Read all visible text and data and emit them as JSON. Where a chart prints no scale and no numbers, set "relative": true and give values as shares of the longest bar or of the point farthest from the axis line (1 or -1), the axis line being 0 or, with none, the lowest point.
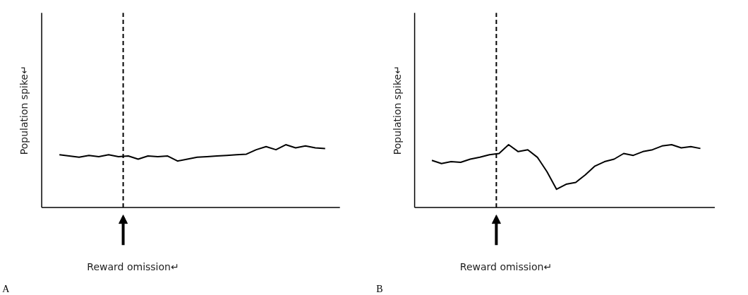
{
  "chart_data": [
    {
      "type": "line",
      "relative": true,
      "ylabel": "Population spike↵",
      "xlabel": "Reward omission↵",
      "annotations": [
        "A"
      ],
      "categories": [
        null,
        null,
        null,
        null,
        null,
        null,
        null,
        null,
        null,
        null,
        null,
        null,
        null,
        null,
        null,
        null,
        null,
        null,
        null,
        null,
        null,
        null,
        null,
        null,
        null,
        null,
        null,
        null
      ],
      "series": [
        {
          "color": "#000000",
          "values": [
            0.84,
            0.82,
            0.8,
            0.83,
            0.81,
            0.84,
            0.81,
            0.82,
            0.77,
            0.82,
            0.81,
            0.82,
            0.74,
            0.77,
            0.8,
            0.81,
            0.82,
            0.83,
            0.84,
            0.85,
            0.92,
            0.97,
            0.92,
            1,
            0.95,
            0.98,
            0.95,
            0.94
          ]
        }
      ]
    },
    {
      "type": "line",
      "relative": true,
      "ylabel": "Population spike↵",
      "xlabel": "Reward omission↵",
      "annotations": [
        "B"
      ],
      "categories": [
        null,
        null,
        null,
        null,
        null,
        null,
        null,
        null,
        null,
        null,
        null,
        null,
        null,
        null,
        null,
        null,
        null,
        null,
        null,
        null,
        null,
        null,
        null,
        null,
        null,
        null,
        null,
        null,
        null
      ],
      "series": [
        {
          "color": "#000000",
          "values": [
            0.75,
            0.7,
            0.73,
            0.72,
            0.77,
            0.8,
            0.84,
            0.86,
            1,
            0.89,
            0.92,
            0.8,
            0.57,
            0.29,
            0.37,
            0.4,
            0.52,
            0.66,
            0.73,
            0.77,
            0.86,
            0.83,
            0.89,
            0.92,
            0.98,
            1,
            0.95,
            0.97,
            0.94
          ]
        }
      ]
    }
  ]
}
